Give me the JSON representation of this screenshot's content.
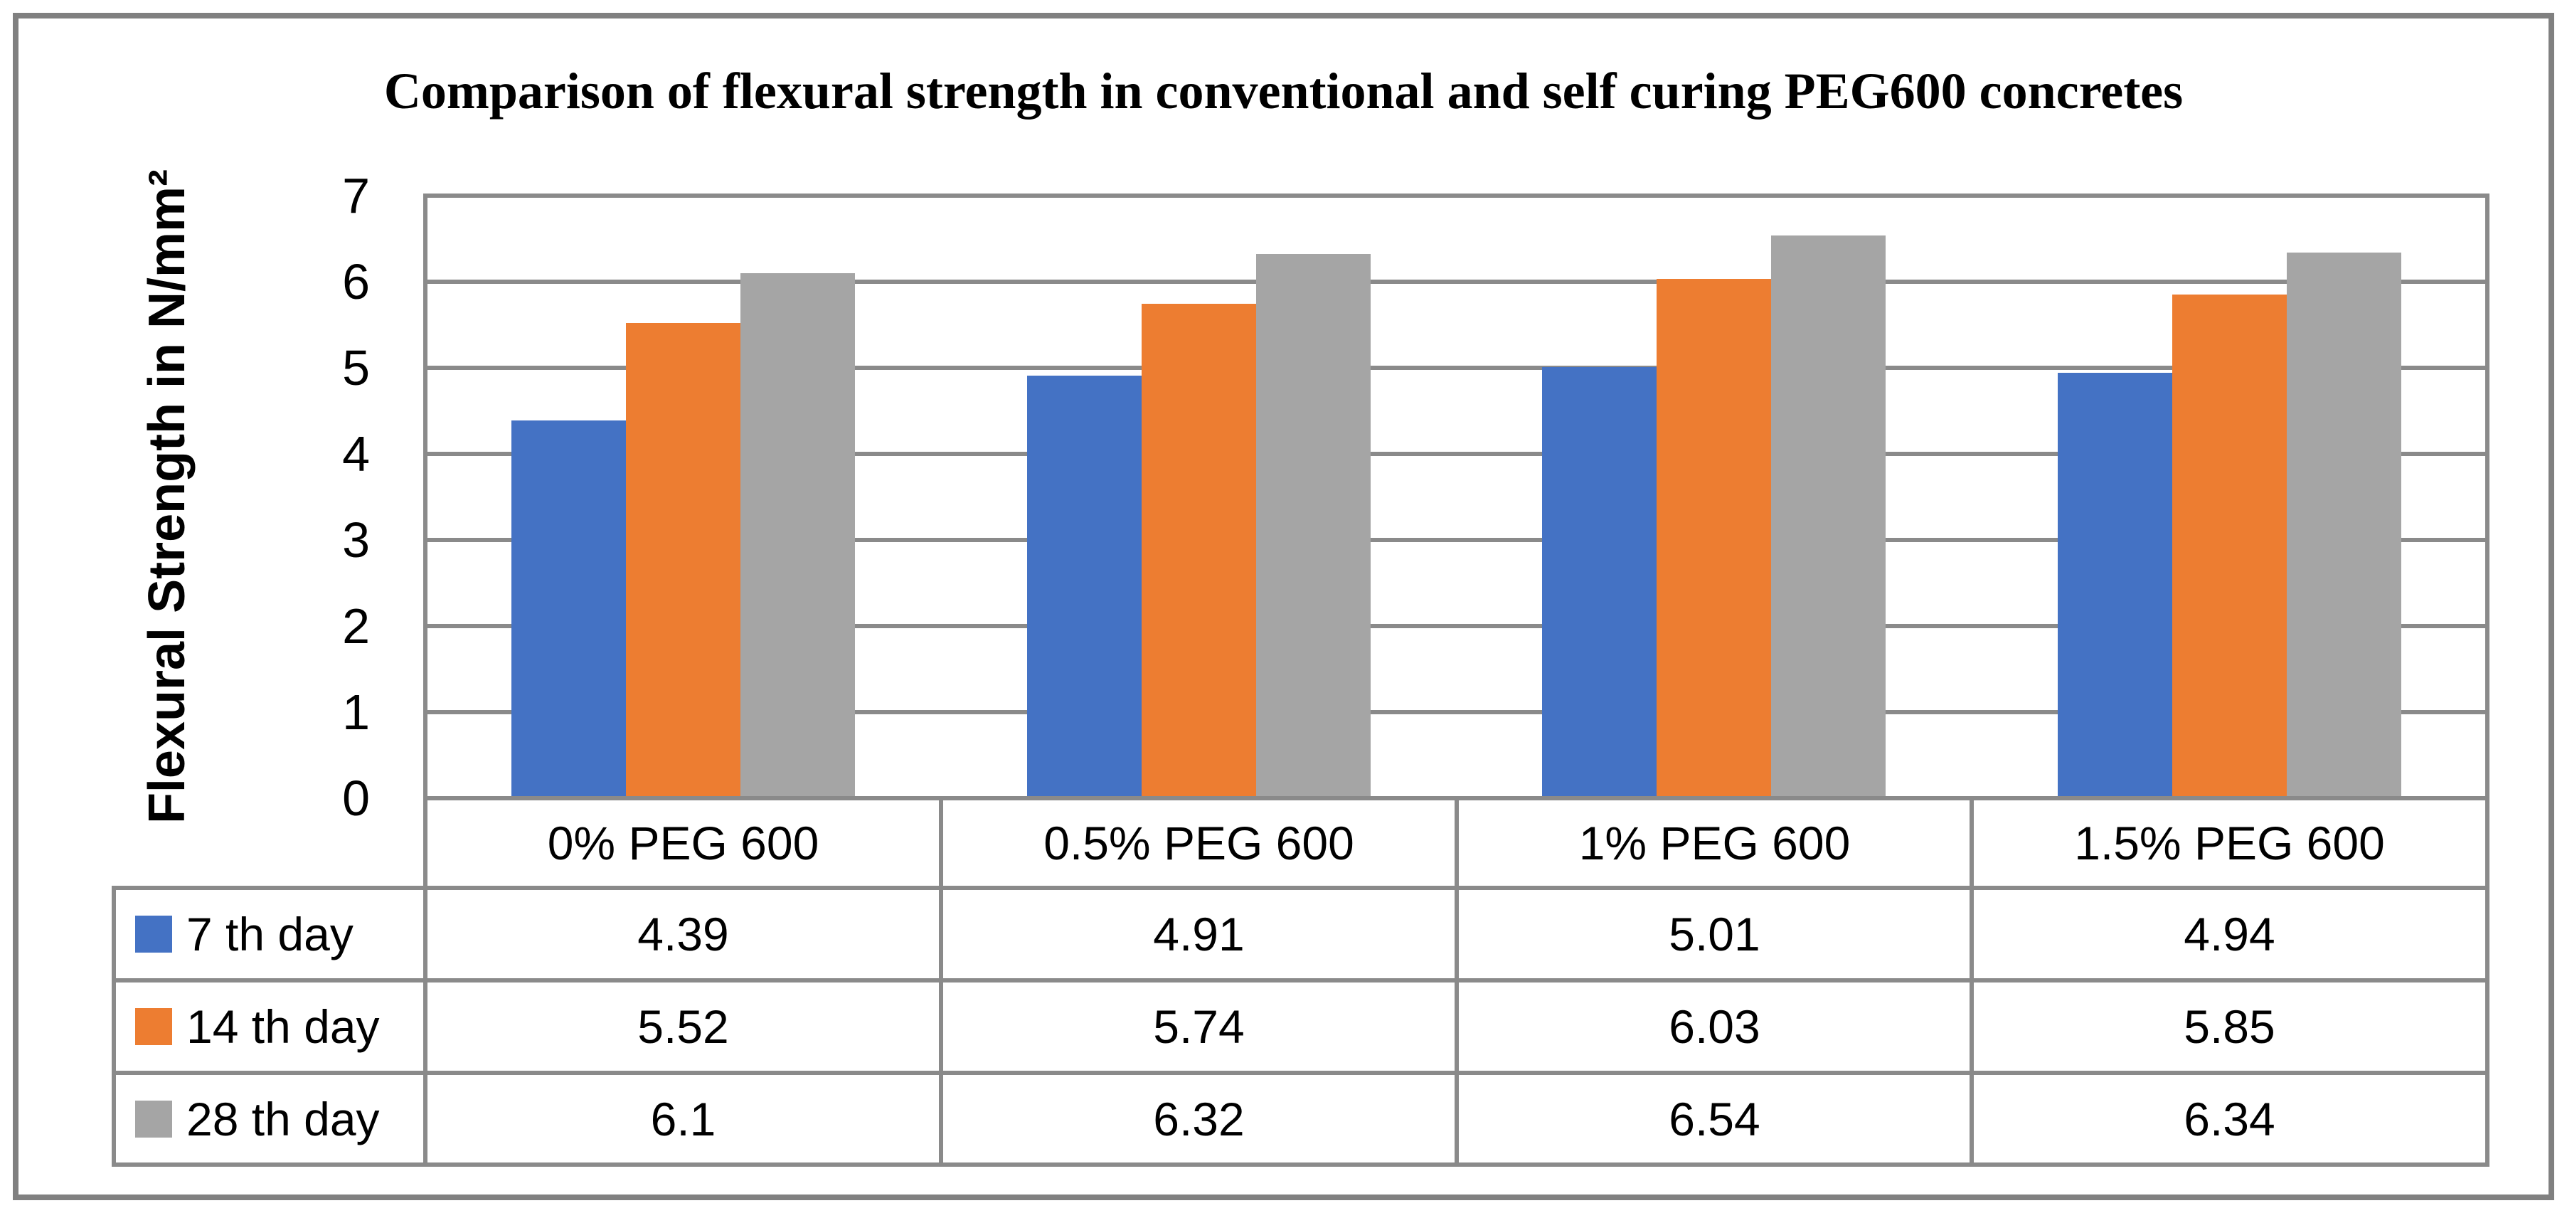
{
  "chart_data": {
    "type": "bar",
    "title": "Comparison of flexural strength in conventional and self curing PEG600 concretes",
    "xlabel": "",
    "ylabel": "Flexural Strength in N/mm²",
    "ylim": [
      0,
      7
    ],
    "yticks": [
      0,
      1,
      2,
      3,
      4,
      5,
      6,
      7
    ],
    "grid": true,
    "legend_position": "data-table-left",
    "categories": [
      "0% PEG 600",
      "0.5% PEG 600",
      "1% PEG 600",
      "1.5% PEG 600"
    ],
    "series": [
      {
        "name": "7 th day",
        "color": "#4472C4",
        "values": [
          4.39,
          4.91,
          5.01,
          4.94
        ]
      },
      {
        "name": "14 th day",
        "color": "#ED7D31",
        "values": [
          5.52,
          5.74,
          6.03,
          5.85
        ]
      },
      {
        "name": "28 th day",
        "color": "#A5A5A5",
        "values": [
          6.1,
          6.32,
          6.54,
          6.34
        ]
      }
    ]
  },
  "colors": {
    "series_blue": "#4472C4",
    "series_orange": "#ED7D31",
    "series_gray": "#A5A5A5",
    "grid_and_border": "#8a8a8a",
    "outer_frame": "#808080",
    "text": "#000000",
    "background": "#FFFFFF"
  }
}
